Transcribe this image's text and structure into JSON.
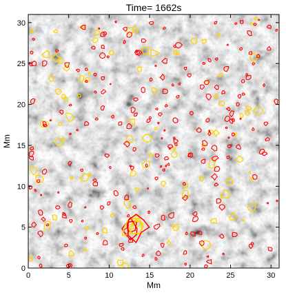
{
  "chart_data": {
    "type": "heatmap",
    "title": "Time= 1662s",
    "xlabel": "Mm",
    "ylabel": "Mm",
    "xlim": [
      0,
      31
    ],
    "ylim": [
      0,
      31
    ],
    "x_ticks": [
      0,
      5,
      10,
      15,
      20,
      25,
      30
    ],
    "y_ticks": [
      0,
      5,
      10,
      15,
      20,
      25,
      30
    ],
    "colormap": "grayscale",
    "overlay_contours": [
      {
        "color": "#ff0000",
        "description": "red contours"
      },
      {
        "color": "#ffd400",
        "description": "yellow contours"
      }
    ],
    "strong_feature_center": [
      13,
      5
    ]
  }
}
